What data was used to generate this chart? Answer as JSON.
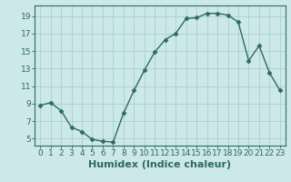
{
  "x": [
    0,
    1,
    2,
    3,
    4,
    5,
    6,
    7,
    8,
    9,
    10,
    11,
    12,
    13,
    14,
    15,
    16,
    17,
    18,
    19,
    20,
    21,
    22,
    23
  ],
  "y": [
    8.8,
    9.1,
    8.2,
    6.3,
    5.8,
    4.9,
    4.7,
    4.6,
    7.9,
    10.5,
    12.8,
    14.9,
    16.3,
    17.0,
    18.7,
    18.8,
    19.3,
    19.3,
    19.1,
    18.3,
    13.9,
    15.6,
    12.5,
    10.5
  ],
  "xlabel": "Humidex (Indice chaleur)",
  "ylabel": "",
  "xlim": [
    -0.5,
    23.5
  ],
  "ylim": [
    4.2,
    20.2
  ],
  "yticks": [
    5,
    7,
    9,
    11,
    13,
    15,
    17,
    19
  ],
  "xticks": [
    0,
    1,
    2,
    3,
    4,
    5,
    6,
    7,
    8,
    9,
    10,
    11,
    12,
    13,
    14,
    15,
    16,
    17,
    18,
    19,
    20,
    21,
    22,
    23
  ],
  "line_color": "#2d6b5e",
  "marker": "D",
  "marker_size": 2.5,
  "bg_color": "#cce8e8",
  "grid_color": "#aacfcf",
  "spine_color": "#2d6b5e",
  "tick_fontsize": 6.5,
  "xlabel_fontsize": 8
}
